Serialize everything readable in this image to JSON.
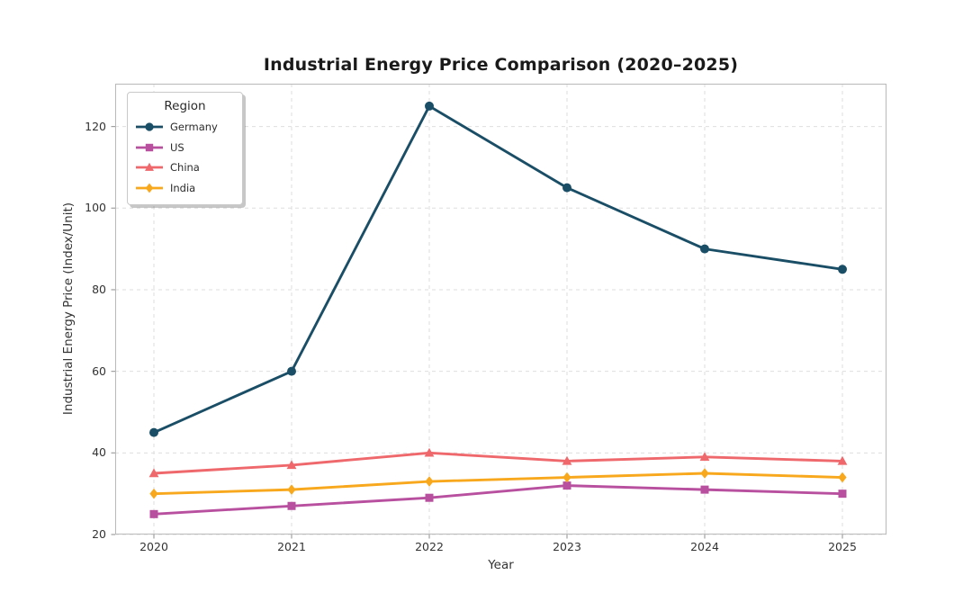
{
  "figure": {
    "background": "#ffffff"
  },
  "chart_data": {
    "type": "line",
    "title": "Industrial Energy Price Comparison (2020–2025)",
    "xlabel": "Year",
    "ylabel": "Industrial Energy Price (Index/Unit)",
    "legend_title": "Region",
    "legend_position": "upper left",
    "grid": "both-dashed",
    "categories": [
      "2020",
      "2021",
      "2022",
      "2023",
      "2024",
      "2025"
    ],
    "yticks": [
      20,
      40,
      60,
      80,
      100,
      120
    ],
    "ylim": [
      20,
      130
    ],
    "series": [
      {
        "name": "Germany",
        "color": "#1a4e66",
        "marker": "circle",
        "values": [
          45,
          60,
          125,
          105,
          90,
          85
        ]
      },
      {
        "name": "US",
        "color": "#b8509f",
        "marker": "square",
        "values": [
          25,
          27,
          29,
          32,
          31,
          30
        ]
      },
      {
        "name": "China",
        "color": "#ee686c",
        "marker": "triangle",
        "values": [
          35,
          37,
          40,
          38,
          39,
          38
        ]
      },
      {
        "name": "India",
        "color": "#f7a81d",
        "marker": "diamond",
        "values": [
          30,
          31,
          33,
          34,
          35,
          34
        ]
      }
    ],
    "colors": {
      "gridline": "#dedede",
      "spine": "#b9b9b9",
      "tick_mark": "#a0a0a0",
      "text": "#333333"
    }
  }
}
